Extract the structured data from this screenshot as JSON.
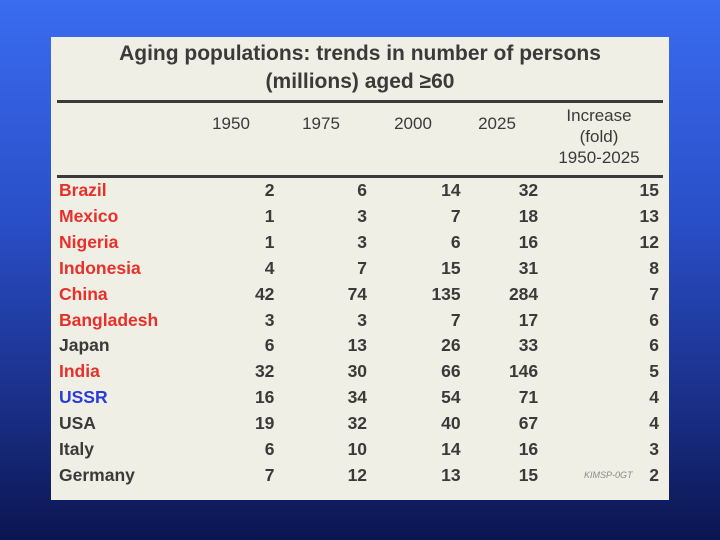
{
  "title_line1": "Aging populations: trends in number of persons",
  "title_line2": "(millions) aged ≥60",
  "headers": {
    "y1950": "1950",
    "y1975": "1975",
    "y2000": "2000",
    "y2025": "2025",
    "increase_l1": "Increase",
    "increase_l2": "(fold)",
    "increase_l3": "1950-2025"
  },
  "rows": [
    {
      "country": "Brazil",
      "color": "#e8302a",
      "v1950": "2",
      "v1975": "6",
      "v2000": "14",
      "v2025": "32",
      "increase": "15"
    },
    {
      "country": "Mexico",
      "color": "#e8302a",
      "v1950": "1",
      "v1975": "3",
      "v2000": "7",
      "v2025": "18",
      "increase": "13"
    },
    {
      "country": "Nigeria",
      "color": "#e8302a",
      "v1950": "1",
      "v1975": "3",
      "v2000": "6",
      "v2025": "16",
      "increase": "12"
    },
    {
      "country": "Indonesia",
      "color": "#e8302a",
      "v1950": "4",
      "v1975": "7",
      "v2000": "15",
      "v2025": "31",
      "increase": "8"
    },
    {
      "country": "China",
      "color": "#e8302a",
      "v1950": "42",
      "v1975": "74",
      "v2000": "135",
      "v2025": "284",
      "increase": "7"
    },
    {
      "country": "Bangladesh",
      "color": "#e8302a",
      "v1950": "3",
      "v1975": "3",
      "v2000": "7",
      "v2025": "17",
      "increase": "6"
    },
    {
      "country": "Japan",
      "color": "#3a3a3a",
      "v1950": "6",
      "v1975": "13",
      "v2000": "26",
      "v2025": "33",
      "increase": "6"
    },
    {
      "country": "India",
      "color": "#e8302a",
      "v1950": "32",
      "v1975": "30",
      "v2000": "66",
      "v2025": "146",
      "increase": "5"
    },
    {
      "country": "USSR",
      "color": "#2a3ad8",
      "v1950": "16",
      "v1975": "34",
      "v2000": "54",
      "v2025": "71",
      "increase": "4"
    },
    {
      "country": "USA",
      "color": "#3a3a3a",
      "v1950": "19",
      "v1975": "32",
      "v2000": "40",
      "v2025": "67",
      "increase": "4"
    },
    {
      "country": "Italy",
      "color": "#3a3a3a",
      "v1950": "6",
      "v1975": "10",
      "v2000": "14",
      "v2025": "16",
      "increase": "3"
    },
    {
      "country": "Germany",
      "color": "#3a3a3a",
      "v1950": "7",
      "v1975": "12",
      "v2000": "13",
      "v2025": "15",
      "increase": "2"
    }
  ],
  "watermark": "KIMSP-0GT"
}
